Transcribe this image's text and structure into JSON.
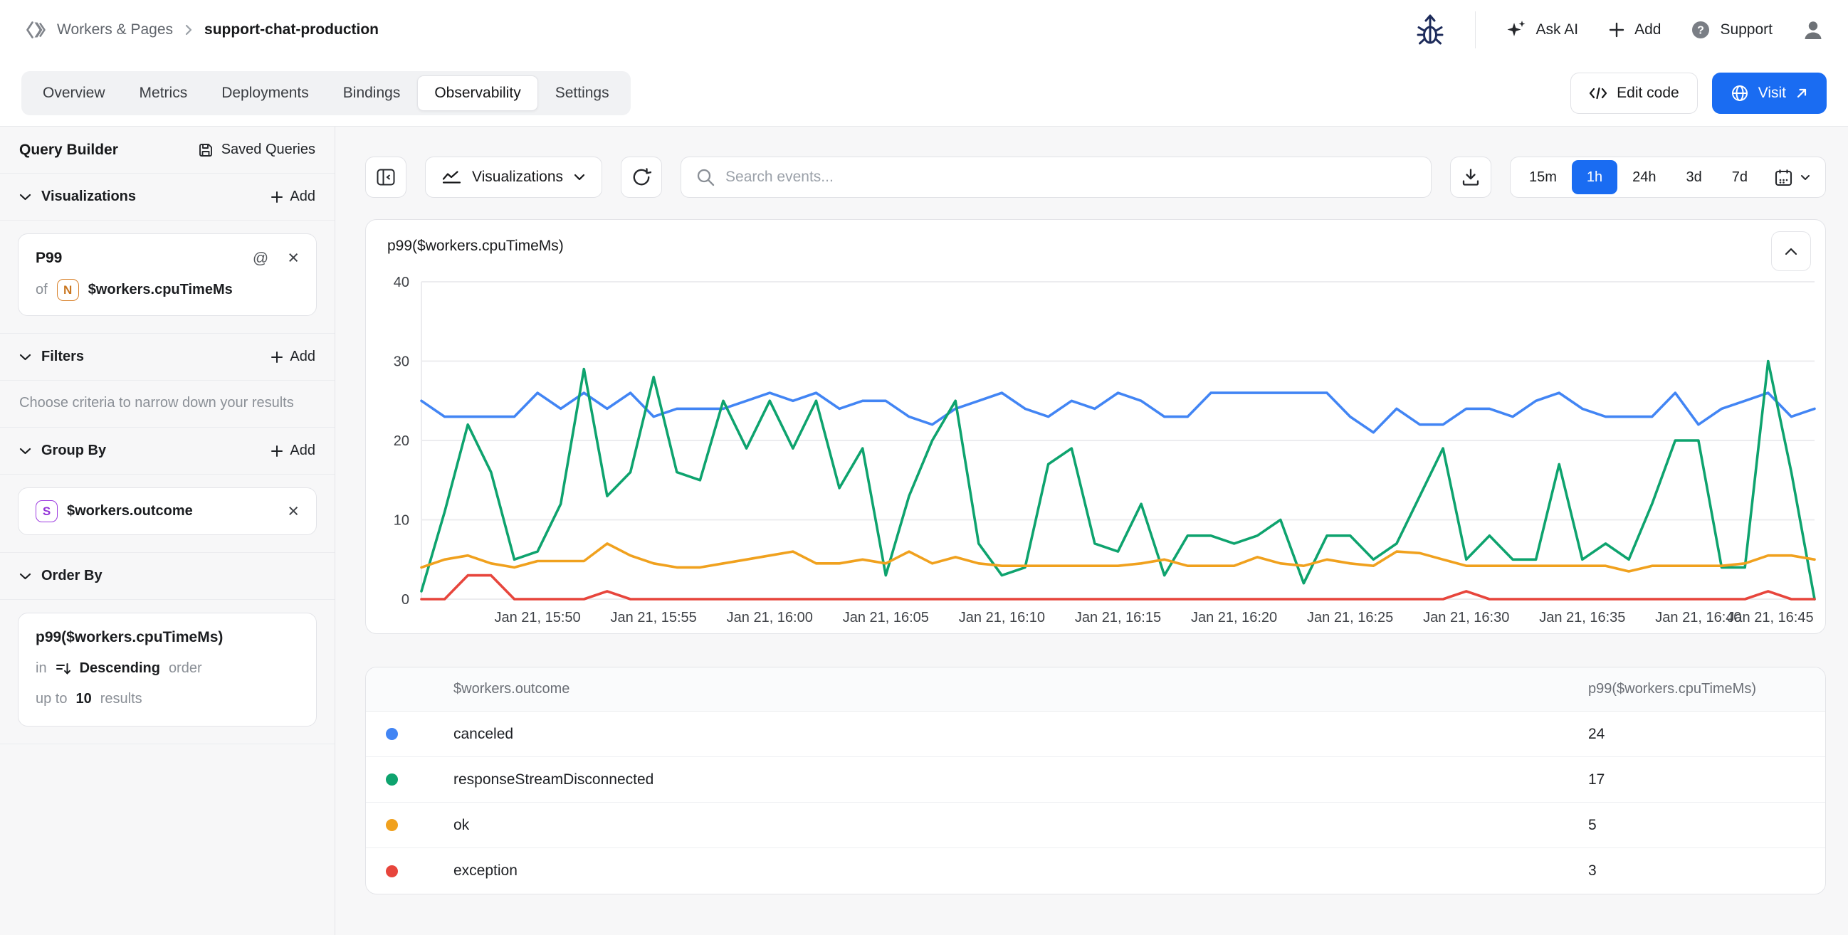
{
  "header": {
    "breadcrumb": {
      "section": "Workers & Pages",
      "page": "support-chat-production"
    },
    "actions": {
      "ask_ai": "Ask AI",
      "add": "Add",
      "support": "Support"
    }
  },
  "tabs": {
    "items": [
      "Overview",
      "Metrics",
      "Deployments",
      "Bindings",
      "Observability",
      "Settings"
    ],
    "active": "Observability"
  },
  "page_actions": {
    "edit_code": "Edit code",
    "visit": "Visit"
  },
  "sidebar": {
    "title": "Query Builder",
    "saved_queries": "Saved Queries",
    "sections": {
      "visualizations": {
        "label": "Visualizations",
        "add": "Add"
      },
      "filters": {
        "label": "Filters",
        "add": "Add",
        "empty": "Choose criteria to narrow down your results"
      },
      "group_by": {
        "label": "Group By",
        "add": "Add"
      },
      "order_by": {
        "label": "Order By"
      }
    },
    "visualization_card": {
      "title": "P99",
      "of": "of",
      "type_badge": "N",
      "field": "$workers.cpuTimeMs"
    },
    "group_by_card": {
      "type_badge": "S",
      "field": "$workers.outcome"
    },
    "order_by_card": {
      "field": "p99($workers.cpuTimeMs)",
      "in": "in",
      "direction": "Descending",
      "order": "order",
      "up_to": "up to",
      "limit": "10",
      "results": "results"
    }
  },
  "toolbar": {
    "visualizations_label": "Visualizations",
    "search_placeholder": "Search events...",
    "ranges": [
      "15m",
      "1h",
      "24h",
      "3d",
      "7d"
    ],
    "active_range": "1h"
  },
  "chart_card": {
    "title": "p99($workers.cpuTimeMs)"
  },
  "chart_data": {
    "type": "line",
    "title": "p99($workers.cpuTimeMs)",
    "x_start": "Jan 21, 15:45",
    "x_interval_minutes": 1,
    "x_tick_labels": [
      "Jan 21, 15:50",
      "Jan 21, 15:55",
      "Jan 21, 16:00",
      "Jan 21, 16:05",
      "Jan 21, 16:10",
      "Jan 21, 16:15",
      "Jan 21, 16:20",
      "Jan 21, 16:25",
      "Jan 21, 16:30",
      "Jan 21, 16:35",
      "Jan 21, 16:40",
      "Jan 21, 16:45"
    ],
    "x_tick_indices": [
      5,
      10,
      15,
      20,
      25,
      30,
      35,
      40,
      45,
      50,
      55,
      60
    ],
    "ylim": [
      0,
      40
    ],
    "yticks": [
      0,
      10,
      20,
      30,
      40
    ],
    "grid": true,
    "legend": "none",
    "series": [
      {
        "name": "canceled",
        "color": "#4285F4",
        "values": [
          25,
          23,
          23,
          23,
          23,
          26,
          24,
          26,
          24,
          26,
          23,
          24,
          24,
          24,
          25,
          26,
          25,
          26,
          24,
          25,
          25,
          23,
          22,
          24,
          25,
          26,
          24,
          23,
          25,
          24,
          26,
          25,
          23,
          23,
          26,
          26,
          26,
          26,
          26,
          26,
          23,
          21,
          24,
          22,
          22,
          24,
          24,
          23,
          25,
          26,
          24,
          23,
          23,
          23,
          26,
          22,
          24,
          25,
          26,
          23,
          24
        ]
      },
      {
        "name": "responseStreamDisconnected",
        "color": "#0EA36E",
        "values": [
          1,
          11,
          22,
          16,
          5,
          6,
          12,
          29,
          13,
          16,
          28,
          16,
          15,
          25,
          19,
          25,
          19,
          25,
          14,
          19,
          3,
          13,
          20,
          25,
          7,
          3,
          4,
          17,
          19,
          7,
          6,
          12,
          3,
          8,
          8,
          7,
          8,
          10,
          2,
          8,
          8,
          5,
          7,
          13,
          19,
          5,
          8,
          5,
          5,
          17,
          5,
          7,
          5,
          12,
          20,
          20,
          4,
          4,
          30,
          16,
          0
        ]
      },
      {
        "name": "ok",
        "color": "#F0A11E",
        "values": [
          4,
          5,
          5.5,
          4.5,
          4,
          4.8,
          4.8,
          4.8,
          7,
          5.5,
          4.5,
          4,
          4,
          4.5,
          5,
          5.5,
          6,
          4.5,
          4.5,
          5,
          4.5,
          6,
          4.5,
          5.3,
          4.5,
          4.2,
          4.2,
          4.2,
          4.2,
          4.2,
          4.2,
          4.5,
          5,
          4.2,
          4.2,
          4.2,
          5.3,
          4.5,
          4.2,
          5,
          4.5,
          4.2,
          6,
          5.8,
          5,
          4.2,
          4.2,
          4.2,
          4.2,
          4.2,
          4.2,
          4.2,
          3.5,
          4.2,
          4.2,
          4.2,
          4.2,
          4.5,
          5.5,
          5.5,
          5
        ]
      },
      {
        "name": "exception",
        "color": "#E7453C",
        "values": [
          0,
          0,
          3,
          3,
          0,
          0,
          0,
          0,
          1,
          0,
          0,
          0,
          0,
          0,
          0,
          0,
          0,
          0,
          0,
          0,
          0,
          0,
          0,
          0,
          0,
          0,
          0,
          0,
          0,
          0,
          0,
          0,
          0,
          0,
          0,
          0,
          0,
          0,
          0,
          0,
          0,
          0,
          0,
          0,
          0,
          1,
          0,
          0,
          0,
          0,
          0,
          0,
          0,
          0,
          0,
          0,
          0,
          0,
          1,
          0,
          0
        ]
      }
    ]
  },
  "table": {
    "columns": [
      "$workers.outcome",
      "p99($workers.cpuTimeMs)"
    ],
    "rows": [
      {
        "outcome": "canceled",
        "value": "24",
        "color": "#4285F4"
      },
      {
        "outcome": "responseStreamDisconnected",
        "value": "17",
        "color": "#0EA36E"
      },
      {
        "outcome": "ok",
        "value": "5",
        "color": "#F0A11E"
      },
      {
        "outcome": "exception",
        "value": "3",
        "color": "#E7453C"
      }
    ]
  }
}
